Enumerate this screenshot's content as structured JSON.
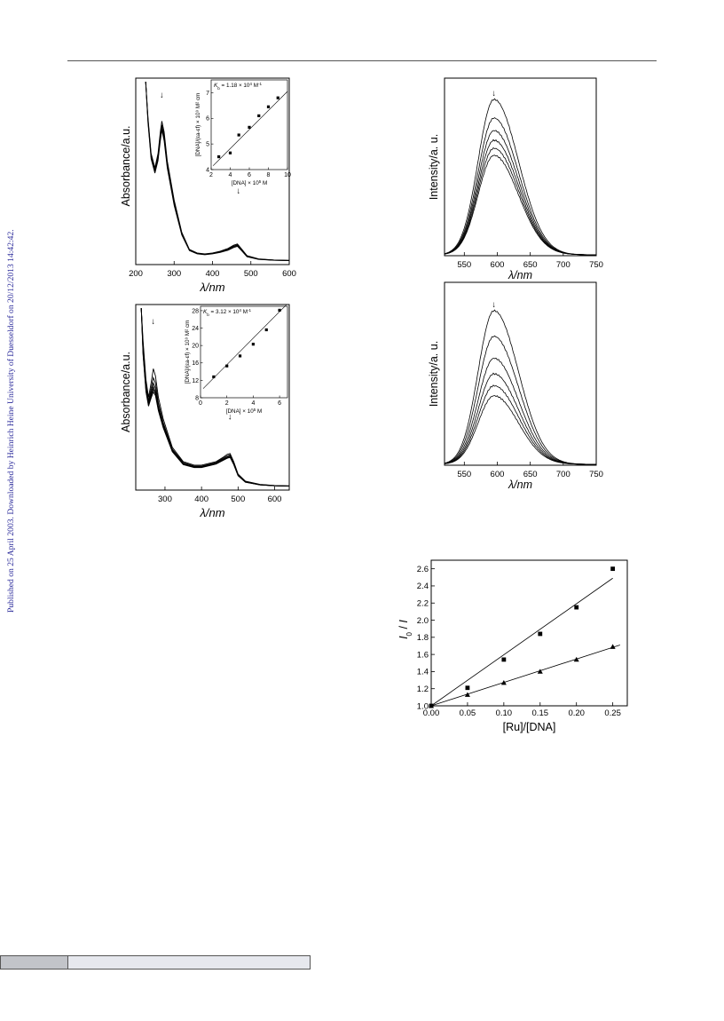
{
  "watermark": {
    "text": "Published on 25 April 2003. Downloaded by Heinrich Heine University of Duesseldorf on 20/12/2013 14:42:42.",
    "color": "#2a2a9a"
  },
  "chart_data": [
    {
      "id": "abs1",
      "type": "line",
      "title": "",
      "xlabel": "λ/nm",
      "ylabel": "Absorbance/a.u.",
      "xlim": [
        200,
        600
      ],
      "xticks": [
        "200",
        "300",
        "400",
        "500",
        "600"
      ],
      "series": [
        {
          "x": [
            226,
            232,
            240,
            250,
            258,
            264,
            268,
            274,
            282,
            300,
            320,
            340,
            360,
            380,
            400,
            420,
            440,
            455,
            465,
            475,
            490,
            520,
            560,
            600
          ],
          "y": [
            1.0,
            0.8,
            0.6,
            0.52,
            0.6,
            0.72,
            0.78,
            0.72,
            0.56,
            0.34,
            0.16,
            0.065,
            0.045,
            0.04,
            0.045,
            0.055,
            0.07,
            0.088,
            0.095,
            0.07,
            0.03,
            0.012,
            0.006,
            0.004
          ]
        },
        {
          "x": [
            226,
            232,
            240,
            250,
            258,
            264,
            268,
            274,
            282,
            300,
            320,
            340,
            360,
            380,
            400,
            420,
            440,
            455,
            465,
            475,
            490,
            520,
            560,
            600
          ],
          "y": [
            1.0,
            0.79,
            0.59,
            0.51,
            0.585,
            0.7,
            0.76,
            0.7,
            0.545,
            0.33,
            0.155,
            0.062,
            0.043,
            0.038,
            0.043,
            0.052,
            0.066,
            0.083,
            0.09,
            0.066,
            0.028,
            0.011,
            0.005,
            0.003
          ]
        },
        {
          "x": [
            226,
            232,
            240,
            250,
            258,
            264,
            268,
            274,
            282,
            300,
            320,
            340,
            360,
            380,
            400,
            420,
            440,
            455,
            465,
            475,
            490,
            520,
            560,
            600
          ],
          "y": [
            1.0,
            0.78,
            0.58,
            0.5,
            0.57,
            0.685,
            0.745,
            0.685,
            0.53,
            0.32,
            0.15,
            0.06,
            0.042,
            0.037,
            0.042,
            0.05,
            0.063,
            0.079,
            0.086,
            0.063,
            0.026,
            0.01,
            0.005,
            0.003
          ]
        },
        {
          "x": [
            226,
            232,
            240,
            250,
            258,
            264,
            268,
            274,
            282,
            300,
            320,
            340,
            360,
            380,
            400,
            420,
            440,
            455,
            465,
            475,
            490,
            520,
            560,
            600
          ],
          "y": [
            1.0,
            0.77,
            0.57,
            0.49,
            0.56,
            0.67,
            0.73,
            0.67,
            0.52,
            0.31,
            0.145,
            0.058,
            0.04,
            0.035,
            0.04,
            0.048,
            0.06,
            0.075,
            0.082,
            0.06,
            0.024,
            0.009,
            0.004,
            0.002
          ]
        }
      ],
      "annotations": [
        {
          "x": 268,
          "label": "↓"
        },
        {
          "x": 468,
          "label": "↓"
        }
      ],
      "inset": {
        "type": "scatter",
        "text_parts": [
          "K",
          "b",
          " = 1.18 × 10",
          "4",
          " M",
          "-1"
        ],
        "xlabel_parts": [
          "[DNA] × 10",
          "5",
          " M"
        ],
        "ylabel": "[DNA]/(εa-εf) × 10⁹ M² cm",
        "xlim": [
          2,
          10
        ],
        "ylim": [
          4,
          7.5
        ],
        "xticks": [
          "2",
          "4",
          "6",
          "8",
          "10"
        ],
        "yticks": [
          "4",
          "5",
          "6",
          "7"
        ],
        "points": [
          [
            2.8,
            4.5
          ],
          [
            4.0,
            4.65
          ],
          [
            4.9,
            5.35
          ],
          [
            6.0,
            5.65
          ],
          [
            7.0,
            6.1
          ],
          [
            8.0,
            6.45
          ],
          [
            9.0,
            6.8
          ]
        ],
        "fit": [
          [
            2.2,
            4.15
          ],
          [
            10.0,
            7.05
          ]
        ]
      }
    },
    {
      "id": "abs2",
      "type": "line",
      "title": "",
      "xlabel": "λ/nm",
      "ylabel": "Absorbance/a.u.",
      "xlim": [
        220,
        640
      ],
      "xticks": [
        "300",
        "400",
        "500",
        "600"
      ],
      "series": [
        {
          "x": [
            235,
            240,
            248,
            255,
            262,
            268,
            274,
            282,
            295,
            320,
            350,
            380,
            400,
            420,
            440,
            460,
            470,
            478,
            488,
            500,
            520,
            560,
            600,
            640
          ],
          "y": [
            1.0,
            0.82,
            0.6,
            0.5,
            0.58,
            0.66,
            0.62,
            0.5,
            0.38,
            0.22,
            0.14,
            0.12,
            0.12,
            0.13,
            0.14,
            0.165,
            0.18,
            0.185,
            0.14,
            0.07,
            0.03,
            0.012,
            0.006,
            0.004
          ]
        },
        {
          "x": [
            235,
            240,
            248,
            255,
            262,
            268,
            274,
            282,
            295,
            320,
            350,
            380,
            400,
            420,
            440,
            460,
            470,
            478,
            488,
            500,
            520,
            560,
            600,
            640
          ],
          "y": [
            1.0,
            0.8,
            0.58,
            0.48,
            0.55,
            0.61,
            0.58,
            0.47,
            0.36,
            0.21,
            0.135,
            0.115,
            0.115,
            0.125,
            0.135,
            0.16,
            0.172,
            0.178,
            0.135,
            0.068,
            0.028,
            0.011,
            0.005,
            0.003
          ]
        },
        {
          "x": [
            235,
            240,
            248,
            255,
            262,
            268,
            274,
            282,
            295,
            320,
            350,
            380,
            400,
            420,
            440,
            460,
            470,
            478,
            488,
            500,
            520,
            560,
            600,
            640
          ],
          "y": [
            1.0,
            0.78,
            0.56,
            0.47,
            0.53,
            0.58,
            0.55,
            0.45,
            0.35,
            0.205,
            0.13,
            0.112,
            0.112,
            0.122,
            0.132,
            0.155,
            0.166,
            0.172,
            0.13,
            0.066,
            0.027,
            0.01,
            0.005,
            0.003
          ]
        },
        {
          "x": [
            235,
            240,
            248,
            255,
            262,
            268,
            274,
            282,
            295,
            320,
            350,
            380,
            400,
            420,
            440,
            460,
            470,
            478,
            488,
            500,
            520,
            560,
            600,
            640
          ],
          "y": [
            1.0,
            0.76,
            0.55,
            0.46,
            0.515,
            0.56,
            0.53,
            0.44,
            0.34,
            0.2,
            0.127,
            0.11,
            0.11,
            0.12,
            0.13,
            0.152,
            0.162,
            0.168,
            0.127,
            0.064,
            0.026,
            0.01,
            0.004,
            0.002
          ]
        },
        {
          "x": [
            235,
            240,
            248,
            255,
            262,
            268,
            274,
            282,
            295,
            320,
            350,
            380,
            400,
            420,
            440,
            460,
            470,
            478,
            488,
            500,
            520,
            560,
            600,
            640
          ],
          "y": [
            1.0,
            0.75,
            0.54,
            0.455,
            0.505,
            0.545,
            0.52,
            0.43,
            0.335,
            0.197,
            0.125,
            0.108,
            0.108,
            0.118,
            0.128,
            0.15,
            0.16,
            0.165,
            0.125,
            0.062,
            0.025,
            0.009,
            0.004,
            0.002
          ]
        },
        {
          "x": [
            235,
            240,
            248,
            255,
            262,
            268,
            274,
            282,
            295,
            320,
            350,
            380,
            400,
            420,
            440,
            460,
            470,
            478,
            488,
            500,
            520,
            560,
            600,
            640
          ],
          "y": [
            1.0,
            0.74,
            0.53,
            0.45,
            0.495,
            0.53,
            0.51,
            0.425,
            0.33,
            0.195,
            0.123,
            0.106,
            0.106,
            0.116,
            0.126,
            0.148,
            0.158,
            0.163,
            0.123,
            0.06,
            0.024,
            0.009,
            0.004,
            0.002
          ]
        }
      ],
      "annotations": [
        {
          "x": 268,
          "label": "↓"
        },
        {
          "x": 478,
          "label": "↓"
        }
      ],
      "inset": {
        "type": "scatter",
        "text_parts": [
          "K",
          "b",
          " = 3.12 × 10",
          "4",
          " M",
          "-1"
        ],
        "xlabel_parts": [
          "[DNA] × 10",
          "5",
          " M"
        ],
        "ylabel": "[DNA]/(εa-εf) × 10⁹ M² cm",
        "xlim": [
          0,
          6.6
        ],
        "ylim": [
          8,
          29
        ],
        "xticks": [
          "0",
          "2",
          "4",
          "6"
        ],
        "yticks": [
          "8",
          "12",
          "16",
          "20",
          "24",
          "28"
        ],
        "points": [
          [
            1.0,
            12.8
          ],
          [
            2.0,
            15.3
          ],
          [
            3.0,
            17.6
          ],
          [
            4.0,
            20.3
          ],
          [
            5.0,
            23.6
          ],
          [
            6.0,
            28.1
          ]
        ],
        "fit": [
          [
            0.2,
            10.1
          ],
          [
            6.5,
            29.3
          ]
        ]
      }
    },
    {
      "id": "fl1",
      "type": "line",
      "title": "",
      "xlabel": "λ/nm",
      "ylabel": "Intensity/a. u.",
      "xlim": [
        520,
        750
      ],
      "xticks": [
        "550",
        "600",
        "650",
        "700",
        "750"
      ],
      "peak_x": 595,
      "peaks": [
        0.875,
        0.77,
        0.7,
        0.645,
        0.6,
        0.56
      ],
      "annotations": [
        {
          "x": 595,
          "label": "↓"
        }
      ]
    },
    {
      "id": "fl2",
      "type": "line",
      "title": "",
      "xlabel": "λ/nm",
      "ylabel": "Intensity/a. u.",
      "xlim": [
        520,
        750
      ],
      "xticks": [
        "550",
        "600",
        "650",
        "700",
        "750"
      ],
      "peak_x": 595,
      "peaks": [
        0.84,
        0.7,
        0.58,
        0.495,
        0.43,
        0.375
      ],
      "annotations": [
        {
          "x": 595,
          "label": "↓"
        }
      ]
    },
    {
      "id": "stern",
      "type": "scatter",
      "title": "",
      "xlabel": "[Ru]/[DNA]",
      "ylabel_parts": [
        "I",
        "0",
        " / ",
        "I"
      ],
      "xlim": [
        0,
        0.27
      ],
      "ylim": [
        1.0,
        2.7
      ],
      "xticks": [
        "0.00",
        "0.05",
        "0.10",
        "0.15",
        "0.20",
        "0.25"
      ],
      "yticks": [
        "1.0",
        "1.2",
        "1.4",
        "1.6",
        "1.8",
        "2.0",
        "2.2",
        "2.4",
        "2.6"
      ],
      "series": [
        {
          "marker": "square",
          "points": [
            [
              0.0,
              1.0
            ],
            [
              0.05,
              1.21
            ],
            [
              0.1,
              1.54
            ],
            [
              0.15,
              1.84
            ],
            [
              0.2,
              2.15
            ],
            [
              0.25,
              2.6
            ]
          ],
          "fit": [
            [
              0.0,
              1.0
            ],
            [
              0.25,
              2.49
            ]
          ]
        },
        {
          "marker": "triangle",
          "points": [
            [
              0.0,
              1.0
            ],
            [
              0.05,
              1.13
            ],
            [
              0.1,
              1.27
            ],
            [
              0.15,
              1.4
            ],
            [
              0.2,
              1.54
            ],
            [
              0.25,
              1.69
            ]
          ],
          "fit": [
            [
              0.0,
              1.0
            ],
            [
              0.26,
              1.71
            ]
          ]
        }
      ]
    }
  ]
}
